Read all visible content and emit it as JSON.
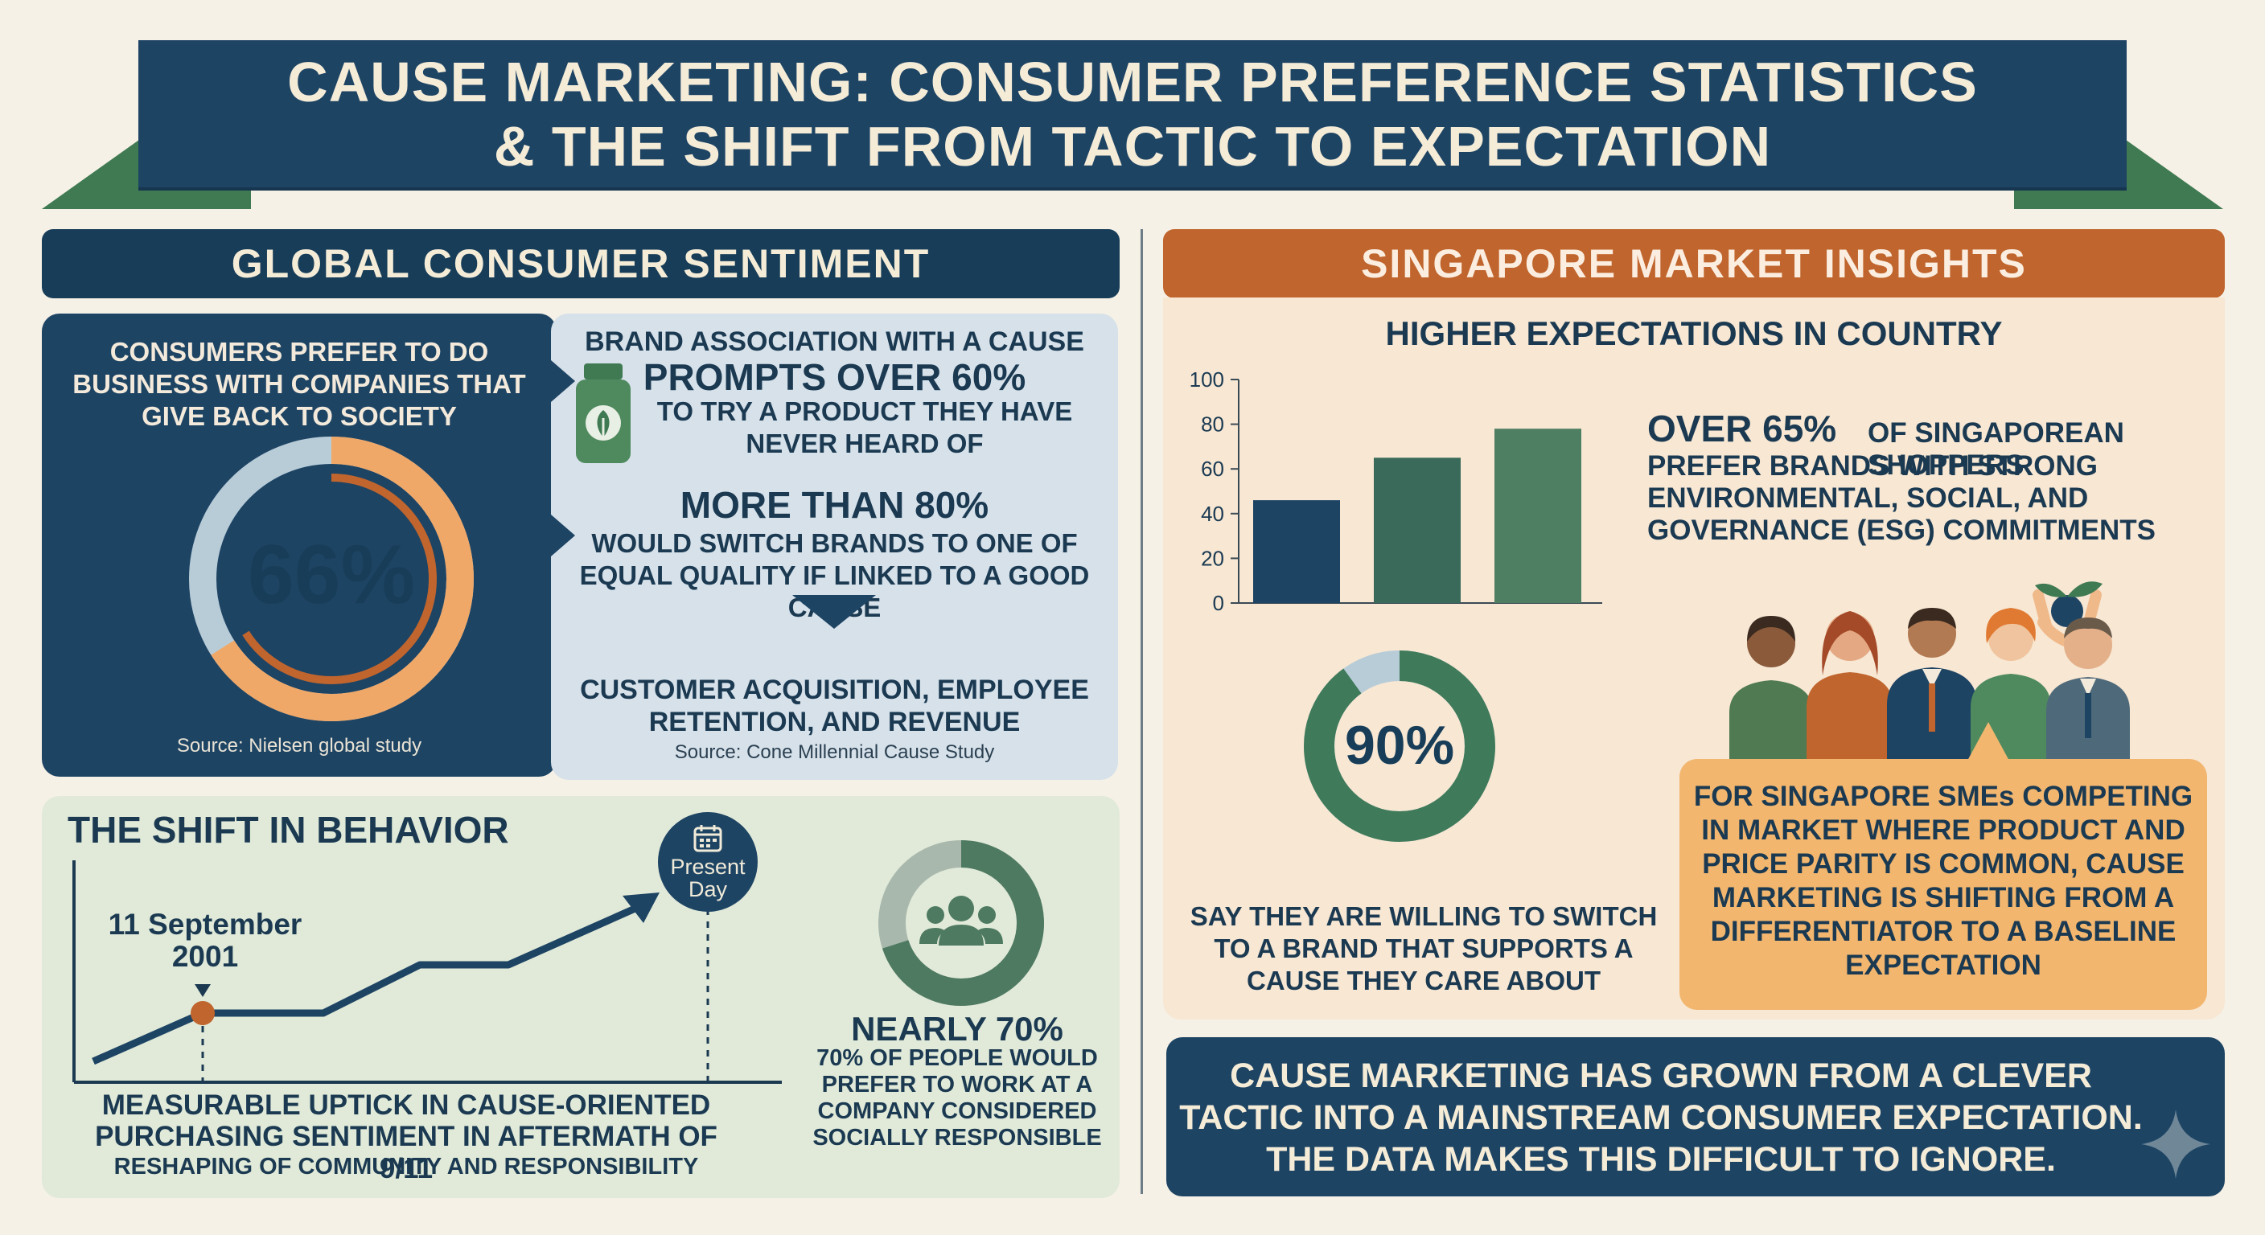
{
  "title": {
    "line1": "CAUSE MARKETING: CONSUMER PREFERENCE STATISTICS",
    "line2": "& THE SHIFT FROM TACTIC TO EXPECTATION"
  },
  "global": {
    "header": "GLOBAL CONSUMER SENTIMENT",
    "stat66": {
      "lead": "CONSUMERS PREFER TO DO BUSINESS WITH COMPANIES THAT GIVE BACK TO SOCIETY",
      "value": "66%",
      "fraction": 0.66,
      "source": "Source: Nielsen global study"
    },
    "brand": {
      "line1": "BRAND ASSOCIATION WITH A CAUSE",
      "big": "PROMPTS OVER 60%",
      "line3": "TO TRY A PRODUCT THEY HAVE NEVER HEARD OF",
      "m80_big": "MORE THAN 80%",
      "m80_text": "WOULD SWITCH BRANDS TO ONE OF EQUAL QUALITY IF LINKED TO A GOOD CAUSE",
      "outcome": "CUSTOMER ACQUISITION, EMPLOYEE RETENTION, AND REVENUE",
      "source": "Source: Cone Millennial Cause Study"
    },
    "shift": {
      "title": "THE SHIFT IN BEHAVIOR",
      "event_label": "11 September 2001",
      "present_label": "Present Day",
      "caption1": "MEASURABLE UPTICK IN CAUSE-ORIENTED",
      "caption2": "PURCHASING SENTIMENT IN AFTERMATH OF 9/11",
      "caption3": "RESHAPING OF COMMUNITY AND RESPONSIBILITY",
      "work_big": "NEARLY 70%",
      "work_text": "70% OF PEOPLE WOULD PREFER TO WORK AT A COMPANY CONSIDERED SOCIALLY RESPONSIBLE",
      "work_fraction": 0.7
    }
  },
  "singapore": {
    "header": "SINGAPORE MARKET INSIGHTS",
    "subtitle": "HIGHER EXPECTATIONS IN COUNTRY",
    "esg_big": "OVER 65%",
    "esg_first": "OF SINGAPOREAN SHOPPERS",
    "esg_text": "PREFER BRANDS WITH STRONG ENVIRONMENTAL, SOCIAL, AND GOVERNANCE (ESG) COMMITMENTS",
    "switch_value": "90%",
    "switch_fraction": 0.9,
    "switch_text": "SAY THEY ARE WILLING TO SWITCH TO A BRAND THAT SUPPORTS A CAUSE THEY CARE ABOUT",
    "sme_text": "FOR SINGAPORE SMEs COMPETING IN MARKET WHERE PRODUCT AND PRICE PARITY IS COMMON, CAUSE MARKETING IS SHIFTING FROM A DIFFERENTIATOR TO A BASELINE EXPECTATION"
  },
  "conclusion": {
    "text": "CAUSE MARKETING HAS GROWN FROM A CLEVER TACTIC INTO A MAINSTREAM CONSUMER EXPECTATION. THE DATA MAKES THIS DIFFICULT TO IGNORE."
  },
  "colors": {
    "navy": "#1e4464",
    "orange": "#c0652d",
    "green": "#3f7a52",
    "sage": "#4f7a62",
    "light_blue": "#b8ccd8",
    "peach": "#f2b66f"
  },
  "chart_data": {
    "type": "bar",
    "categories": [
      "",
      "",
      ""
    ],
    "values": [
      46,
      65,
      78
    ],
    "colors": [
      "#1e4464",
      "#3a6a5a",
      "#4f7f62"
    ],
    "ylim": [
      0,
      100
    ],
    "yticks": [
      0,
      20,
      40,
      60,
      80,
      100
    ],
    "title": "",
    "xlabel": "",
    "ylabel": ""
  }
}
